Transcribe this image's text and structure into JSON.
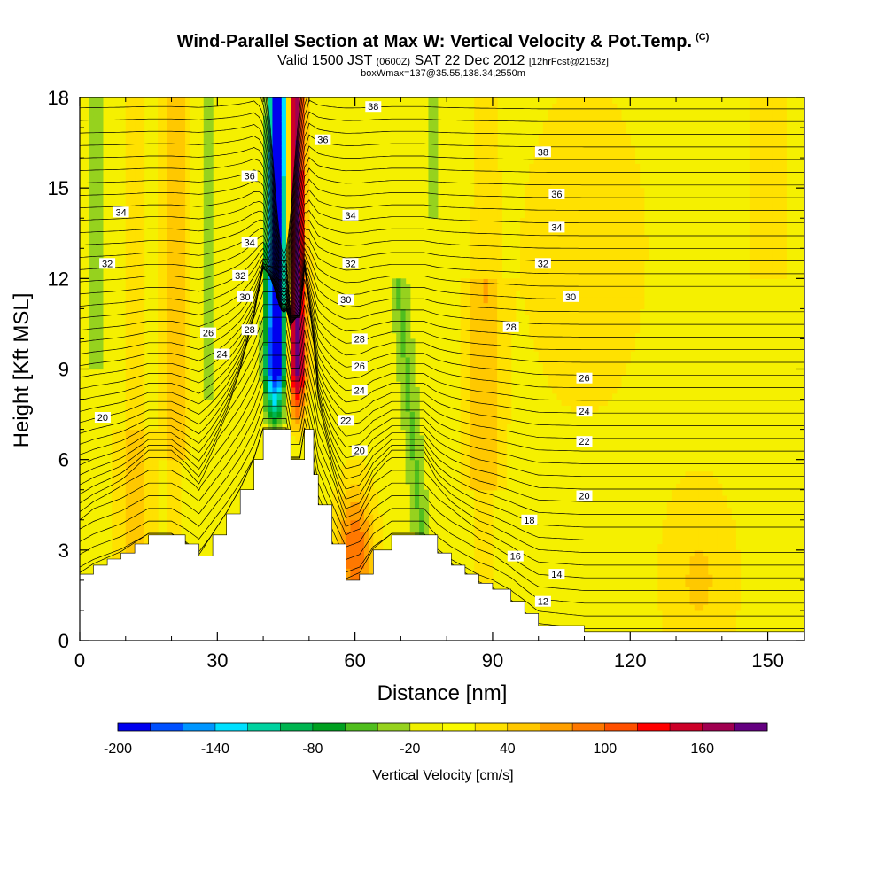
{
  "header": {
    "title": "Wind-Parallel Section at Max W: Vertical Velocity & Pot.Temp.",
    "copyright": "(C)",
    "valid_prefix": "Valid 1500 JST",
    "valid_utc": "(0600Z)",
    "valid_date": "SAT 22 Dec 2012",
    "forecast_info": "[12hrFcst@2153z]",
    "box_info": "boxWmax=137@35.55,138.34,2550m"
  },
  "chart_data": {
    "type": "heatmap",
    "xlabel": "Distance [nm]",
    "ylabel": "Height [Kft MSL]",
    "xlim": [
      0,
      158
    ],
    "ylim": [
      0,
      18
    ],
    "x_ticks": [
      "0",
      "30",
      "60",
      "90",
      "120",
      "150"
    ],
    "y_ticks": [
      "0",
      "3",
      "6",
      "9",
      "12",
      "15",
      "18"
    ],
    "colorbar": {
      "label": "Vertical Velocity [cm/s]",
      "tick_labels": [
        "-200",
        "-140",
        "-80",
        "-20",
        "40",
        "100",
        "160"
      ],
      "levels": [
        -200,
        -180,
        -160,
        -140,
        -120,
        -100,
        -80,
        -60,
        -40,
        -20,
        0,
        20,
        40,
        60,
        80,
        100,
        120,
        140,
        160,
        180
      ],
      "colors": [
        "#0000ee",
        "#0050ff",
        "#0096ff",
        "#00e0ff",
        "#00d2a0",
        "#00b450",
        "#00a020",
        "#50be1e",
        "#96d21e",
        "#f0f000",
        "#fafa00",
        "#ffe100",
        "#ffc800",
        "#ffa000",
        "#ff7800",
        "#ff5000",
        "#ff0000",
        "#cc0028",
        "#a00050",
        "#640080"
      ]
    },
    "terrain_profile": {
      "x": [
        0,
        3,
        6,
        9,
        12,
        15,
        20,
        23,
        26,
        29,
        32,
        35,
        38,
        40,
        43,
        45,
        46,
        48,
        49,
        51,
        52,
        55,
        58,
        61,
        64,
        68,
        75,
        78,
        81,
        84,
        87,
        90,
        94,
        97,
        100,
        110,
        158
      ],
      "y": [
        2.2,
        2.5,
        2.7,
        2.9,
        3.2,
        3.5,
        3.5,
        3.2,
        2.8,
        3.5,
        4.2,
        5.0,
        6.0,
        7.0,
        7.0,
        7.0,
        6.0,
        6.0,
        7.0,
        5.5,
        4.5,
        3.2,
        2.0,
        2.2,
        3.0,
        3.5,
        3.5,
        2.9,
        2.5,
        2.2,
        1.9,
        1.7,
        1.3,
        0.9,
        0.5,
        0.3,
        0.3
      ]
    },
    "theta_contour_labels": [
      {
        "value": "20",
        "x": 5,
        "y": 7.4
      },
      {
        "value": "24",
        "x": 31,
        "y": 9.5
      },
      {
        "value": "26",
        "x": 28,
        "y": 10.2
      },
      {
        "value": "28",
        "x": 37,
        "y": 10.3
      },
      {
        "value": "30",
        "x": 36,
        "y": 11.4
      },
      {
        "value": "32",
        "x": 6,
        "y": 12.5
      },
      {
        "value": "32",
        "x": 35,
        "y": 12.1
      },
      {
        "value": "34",
        "x": 9,
        "y": 14.2
      },
      {
        "value": "34",
        "x": 37,
        "y": 13.2
      },
      {
        "value": "36",
        "x": 37,
        "y": 15.4
      },
      {
        "value": "36",
        "x": 53,
        "y": 16.6
      },
      {
        "value": "38",
        "x": 64,
        "y": 17.7
      },
      {
        "value": "34",
        "x": 59,
        "y": 14.1
      },
      {
        "value": "32",
        "x": 59,
        "y": 12.5
      },
      {
        "value": "30",
        "x": 58,
        "y": 11.3
      },
      {
        "value": "28",
        "x": 61,
        "y": 10.0
      },
      {
        "value": "26",
        "x": 61,
        "y": 9.1
      },
      {
        "value": "24",
        "x": 61,
        "y": 8.3
      },
      {
        "value": "22",
        "x": 58,
        "y": 7.3
      },
      {
        "value": "20",
        "x": 61,
        "y": 6.3
      },
      {
        "value": "38",
        "x": 101,
        "y": 16.2
      },
      {
        "value": "36",
        "x": 104,
        "y": 14.8
      },
      {
        "value": "34",
        "x": 104,
        "y": 13.7
      },
      {
        "value": "32",
        "x": 101,
        "y": 12.5
      },
      {
        "value": "30",
        "x": 107,
        "y": 11.4
      },
      {
        "value": "28",
        "x": 94,
        "y": 10.4
      },
      {
        "value": "26",
        "x": 110,
        "y": 8.7
      },
      {
        "value": "24",
        "x": 110,
        "y": 7.6
      },
      {
        "value": "22",
        "x": 110,
        "y": 6.6
      },
      {
        "value": "20",
        "x": 110,
        "y": 4.8
      },
      {
        "value": "18",
        "x": 98,
        "y": 4.0
      },
      {
        "value": "16",
        "x": 95,
        "y": 2.8
      },
      {
        "value": "14",
        "x": 104,
        "y": 2.2
      },
      {
        "value": "12",
        "x": 101,
        "y": 1.3
      }
    ]
  }
}
